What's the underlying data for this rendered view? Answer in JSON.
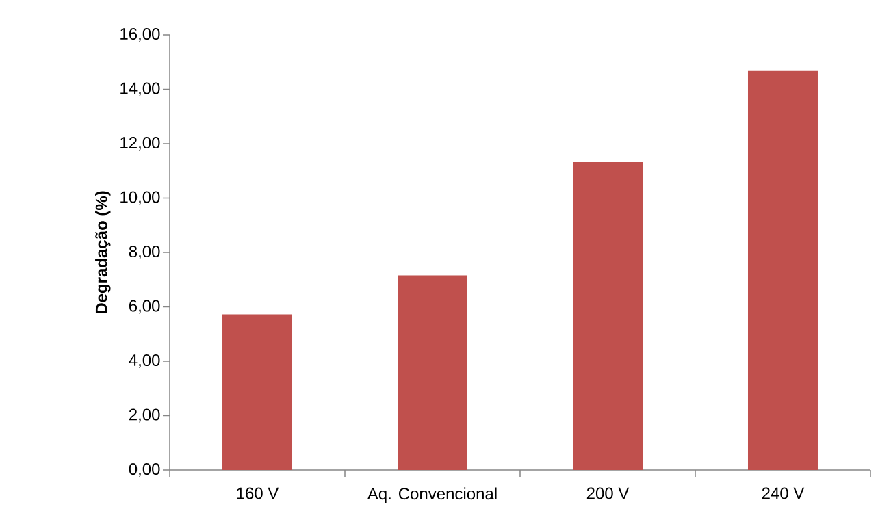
{
  "chart_data": {
    "type": "bar",
    "ylabel": "**Degradação (%)**",
    "categories": [
      "160 V",
      "Aq. Convencional",
      "200 V",
      "240 V"
    ],
    "values": [
      5.72,
      7.16,
      11.32,
      14.68
    ],
    "color": "#c0504d",
    "ylim": [
      0,
      16
    ],
    "yticks": [
      {
        "value": 0,
        "label": "0,00"
      },
      {
        "value": 2,
        "label": "2,00"
      },
      {
        "value": 4,
        "label": "4,00"
      },
      {
        "value": 6,
        "label": "6,00"
      },
      {
        "value": 8,
        "label": "8,00"
      },
      {
        "value": 10,
        "label": "10,00"
      },
      {
        "value": 12,
        "label": "12,00"
      },
      {
        "value": 14,
        "label": "14,00"
      },
      {
        "value": 16,
        "label": "16,00"
      }
    ],
    "grid": false
  }
}
